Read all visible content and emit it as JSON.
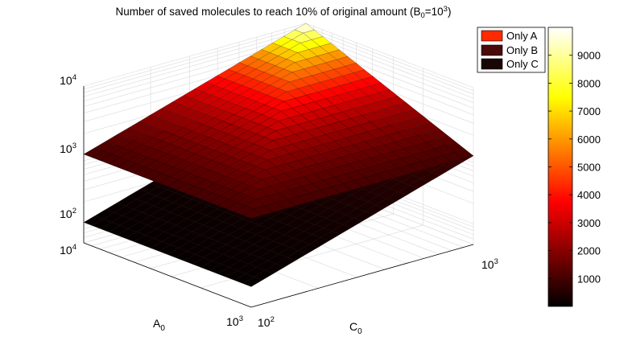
{
  "chart_data": {
    "type": "surface",
    "title_prefix": "Number of saved molecules to reach 10% of original amount (B",
    "title_sub": "0",
    "title_mid": "=10",
    "title_sup": "3",
    "title_suffix": ")",
    "x_axis": {
      "label": "C",
      "label_sub": "0",
      "scale": "log",
      "range": [
        100,
        1000
      ],
      "ticks": [
        {
          "base": "10",
          "exp": "2"
        },
        {
          "base": "10",
          "exp": "3"
        }
      ]
    },
    "y_axis": {
      "label": "A",
      "label_sub": "0",
      "scale": "log",
      "range": [
        1000,
        10000
      ],
      "ticks": [
        {
          "base": "10",
          "exp": "3"
        },
        {
          "base": "10",
          "exp": "4"
        }
      ]
    },
    "z_axis": {
      "label": "",
      "scale": "log",
      "range": [
        50,
        10000
      ],
      "ticks": [
        {
          "base": "10",
          "exp": "2"
        },
        {
          "base": "10",
          "exp": "3"
        },
        {
          "base": "10",
          "exp": "4"
        }
      ]
    },
    "grid": true,
    "legend_position": "top-right",
    "series": [
      {
        "name": "Only A",
        "color": "#ff2a00",
        "corners": {
          "C100_A1000": 100,
          "C1000_A1000": 1000,
          "C100_A10000": 10000,
          "C1000_A10000": 10000
        }
      },
      {
        "name": "Only B",
        "color": "#4a0a0a",
        "corners": {
          "C100_A1000": 1000,
          "C1000_A1000": 1000,
          "C100_A10000": 1000,
          "C1000_A10000": 1000
        }
      },
      {
        "name": "Only C",
        "color": "#1a0505",
        "corners": {
          "C100_A1000": 100,
          "C1000_A1000": 1000,
          "C100_A10000": 100,
          "C1000_A10000": 1000
        }
      }
    ],
    "colorbar": {
      "colormap": "hot",
      "range": [
        0,
        10000
      ],
      "ticks": [
        1000,
        2000,
        3000,
        4000,
        5000,
        6000,
        7000,
        8000,
        9000
      ]
    }
  }
}
